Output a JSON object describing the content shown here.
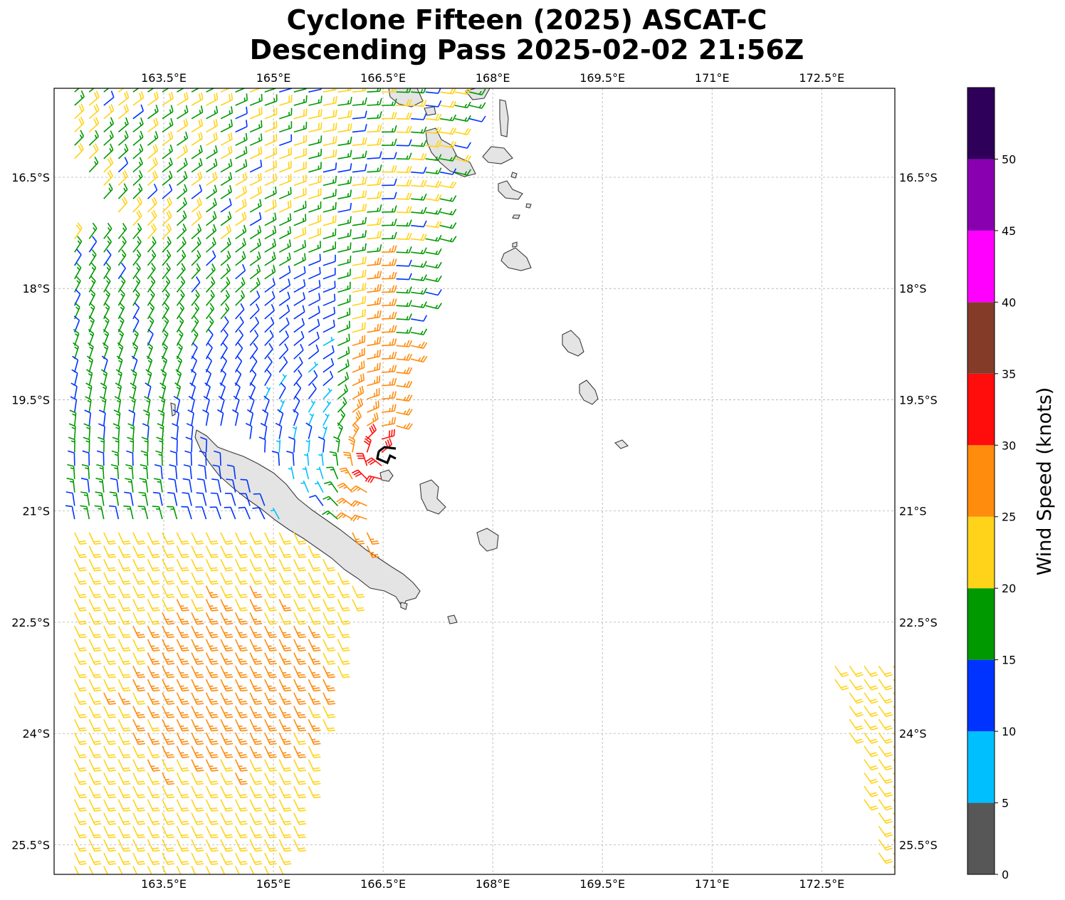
{
  "title": {
    "line1": "Cyclone Fifteen (2025) ASCAT-C",
    "line2": "Descending Pass 2025-02-02 21:56Z"
  },
  "map": {
    "lon_range": [
      162.0,
      173.5
    ],
    "lat_range": [
      -25.9,
      -15.3
    ],
    "lon_ticks": [
      163.5,
      165.0,
      166.5,
      168.0,
      169.5,
      171.0,
      172.5
    ],
    "lon_tick_labels": [
      "163.5°E",
      "165°E",
      "166.5°E",
      "168°E",
      "169.5°E",
      "171°E",
      "172.5°E"
    ],
    "lat_ticks": [
      -16.5,
      -18.0,
      -19.5,
      -21.0,
      -22.5,
      -24.0,
      -25.5
    ],
    "lat_tick_labels": [
      "16.5°S",
      "18°S",
      "19.5°S",
      "21°S",
      "22.5°S",
      "24°S",
      "25.5°S"
    ],
    "grid": true,
    "land_color": "#e4e4e4",
    "coast_color": "#3a3a3a",
    "storm_center_marker_color": "#000000"
  },
  "colorbar": {
    "label": "Wind Speed (knots)",
    "tick_values": [
      0,
      5,
      10,
      15,
      20,
      25,
      30,
      35,
      40,
      45,
      50
    ],
    "tick_labels": [
      "0",
      "5",
      "10",
      "15",
      "20",
      "25",
      "30",
      "35",
      "40",
      "45",
      "50"
    ],
    "bins": [
      {
        "min": 0,
        "max": 5,
        "color": "#575757"
      },
      {
        "min": 5,
        "max": 10,
        "color": "#00bfff"
      },
      {
        "min": 10,
        "max": 15,
        "color": "#0033ff"
      },
      {
        "min": 15,
        "max": 20,
        "color": "#009900"
      },
      {
        "min": 20,
        "max": 25,
        "color": "#ffd31a"
      },
      {
        "min": 25,
        "max": 30,
        "color": "#ff8c0d"
      },
      {
        "min": 30,
        "max": 35,
        "color": "#ff0d0d"
      },
      {
        "min": 35,
        "max": 40,
        "color": "#843c29"
      },
      {
        "min": 40,
        "max": 45,
        "color": "#ff00ff"
      },
      {
        "min": 45,
        "max": 50,
        "color": "#8800b0"
      },
      {
        "min": 50,
        "max": 55,
        "color": "#2e0059"
      }
    ]
  },
  "chart_data": {
    "type": "wind_barb_map",
    "field": "ASCAT-C surface wind speed and direction (knots)",
    "storm_center": {
      "lon": 166.55,
      "lat": -20.3
    },
    "swath_main": {
      "west_edge_lon": 162.0,
      "east_edge_lon_top": 167.8,
      "east_edge_lon_bottom": 165.2
    },
    "swath_secondary": {
      "lon_min": 172.6,
      "lat_top": -23.0
    },
    "wind_regions": [
      {
        "region": "northern swath",
        "speed_range_kt": [
          15,
          25
        ]
      },
      {
        "region": "west of storm center",
        "speed_range_kt": [
          5,
          15
        ]
      },
      {
        "region": "eastern eyewall",
        "speed_range_kt": [
          25,
          35
        ]
      },
      {
        "region": "southern swath",
        "speed_range_kt": [
          20,
          30
        ]
      },
      {
        "region": "secondary eastern swath",
        "speed_range_kt": [
          20,
          25
        ]
      }
    ]
  }
}
